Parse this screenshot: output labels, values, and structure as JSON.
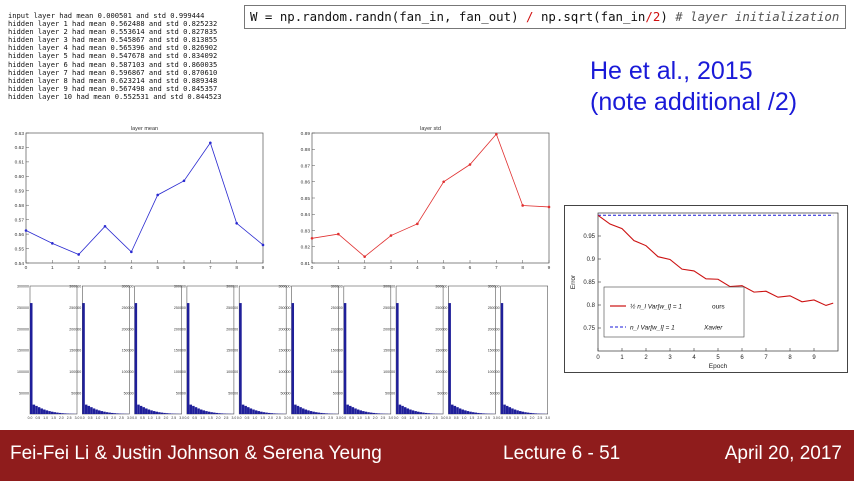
{
  "console_lines": [
    "input layer had mean 0.000501 and std 0.999444",
    "hidden layer 1 had mean 0.562488 and std 0.825232",
    "hidden layer 2 had mean 0.553614 and std 0.827835",
    "hidden layer 3 had mean 0.545867 and std 0.813855",
    "hidden layer 4 had mean 0.565396 and std 0.826902",
    "hidden layer 5 had mean 0.547678 and std 0.834092",
    "hidden layer 6 had mean 0.587103 and std 0.860035",
    "hidden layer 7 had mean 0.596867 and std 0.870610",
    "hidden layer 8 had mean 0.623214 and std 0.889348",
    "hidden layer 9 had mean 0.567498 and std 0.845357",
    "hidden layer 10 had mean 0.552531 and std 0.844523"
  ],
  "code": {
    "part1": "W = np.random.randn(fan_in, fan_out) ",
    "part2": "/",
    "part3": " np.sqrt(fan_in",
    "part4": "/2",
    "part5": ") ",
    "comment": "# layer initialization"
  },
  "note": {
    "line1": "He et al., 2015",
    "line2": "(note additional /2)"
  },
  "colors": {
    "mean_line": "#2a2ad0",
    "std_line": "#e03030",
    "ours_line": "#cc1111",
    "xavier_line": "#1a1ad8",
    "histogram_bar": "#1f1f9a",
    "footer_bg": "#8f1c1c",
    "note_text": "#1a1ad8"
  },
  "chart_data": [
    {
      "type": "line",
      "title": "layer mean",
      "x": [
        0,
        1,
        2,
        3,
        4,
        5,
        6,
        7,
        8,
        9
      ],
      "values": [
        0.5625,
        0.5536,
        0.5459,
        0.5654,
        0.5477,
        0.5871,
        0.5969,
        0.6232,
        0.5675,
        0.5525
      ],
      "xlim": [
        0,
        9
      ],
      "ylim": [
        0.54,
        0.63
      ],
      "yticks": [
        "0.54",
        "0.55",
        "0.56",
        "0.57",
        "0.58",
        "0.59",
        "0.60",
        "0.61",
        "0.62",
        "0.63"
      ],
      "xticks": [
        "0",
        "1",
        "2",
        "3",
        "4",
        "5",
        "6",
        "7",
        "8",
        "9"
      ]
    },
    {
      "type": "line",
      "title": "layer std",
      "x": [
        0,
        1,
        2,
        3,
        4,
        5,
        6,
        7,
        8,
        9
      ],
      "values": [
        0.8252,
        0.8278,
        0.8139,
        0.8269,
        0.8341,
        0.86,
        0.8706,
        0.8893,
        0.8454,
        0.8445
      ],
      "xlim": [
        0,
        9
      ],
      "ylim": [
        0.81,
        0.89
      ],
      "yticks": [
        "0.81",
        "0.82",
        "0.83",
        "0.84",
        "0.85",
        "0.86",
        "0.87",
        "0.88",
        "0.89"
      ],
      "xticks": [
        "0",
        "1",
        "2",
        "3",
        "4",
        "5",
        "6",
        "7",
        "8",
        "9"
      ]
    },
    {
      "type": "bar",
      "description_free": true,
      "panels": 10,
      "ylim": [
        0,
        300000
      ],
      "yticks": [
        "50000",
        "100000",
        "150000",
        "200000",
        "250000",
        "300000"
      ],
      "xticks": [
        "0.0",
        "0.5",
        "1.0",
        "1.5",
        "2.0",
        "2.5",
        "3.0"
      ],
      "bin_values": [
        260000,
        22000,
        19000,
        16000,
        13000,
        10500,
        8500,
        6800,
        5400,
        4200,
        3300,
        2500,
        1900,
        1400,
        1000,
        700,
        500,
        300
      ]
    },
    {
      "type": "line",
      "ylabel": "Error",
      "xlabel": "Epoch",
      "xlim": [
        0,
        10
      ],
      "ylim": [
        0.7,
        1.0
      ],
      "yticks": [
        "0.75",
        "0.8",
        "0.85",
        "0.9",
        "0.95"
      ],
      "xticks": [
        "0",
        "1",
        "2",
        "3",
        "4",
        "5",
        "6",
        "7",
        "8",
        "9"
      ],
      "series": [
        {
          "name": "ours",
          "legend_math": "½ n_l Var[w_l] = 1",
          "x": [
            0,
            0.5,
            1,
            1.5,
            2,
            2.5,
            3,
            3.5,
            4,
            4.5,
            5,
            5.5,
            6,
            6.5,
            7,
            7.5,
            8,
            8.5,
            9,
            9.5,
            9.8
          ],
          "values": [
            0.995,
            0.98,
            0.962,
            0.944,
            0.925,
            0.909,
            0.895,
            0.882,
            0.87,
            0.861,
            0.852,
            0.844,
            0.838,
            0.832,
            0.826,
            0.821,
            0.816,
            0.811,
            0.807,
            0.803,
            0.8
          ]
        },
        {
          "name": "Xavier",
          "legend_math": "n_l Var[w_l] = 1",
          "x": [
            0,
            9.8
          ],
          "values": [
            0.995,
            0.995
          ]
        }
      ]
    }
  ],
  "footer": {
    "authors": "Fei-Fei Li & Justin Johnson & Serena Yeung",
    "lecture": "Lecture 6 - 51",
    "date": "April 20, 2017"
  }
}
